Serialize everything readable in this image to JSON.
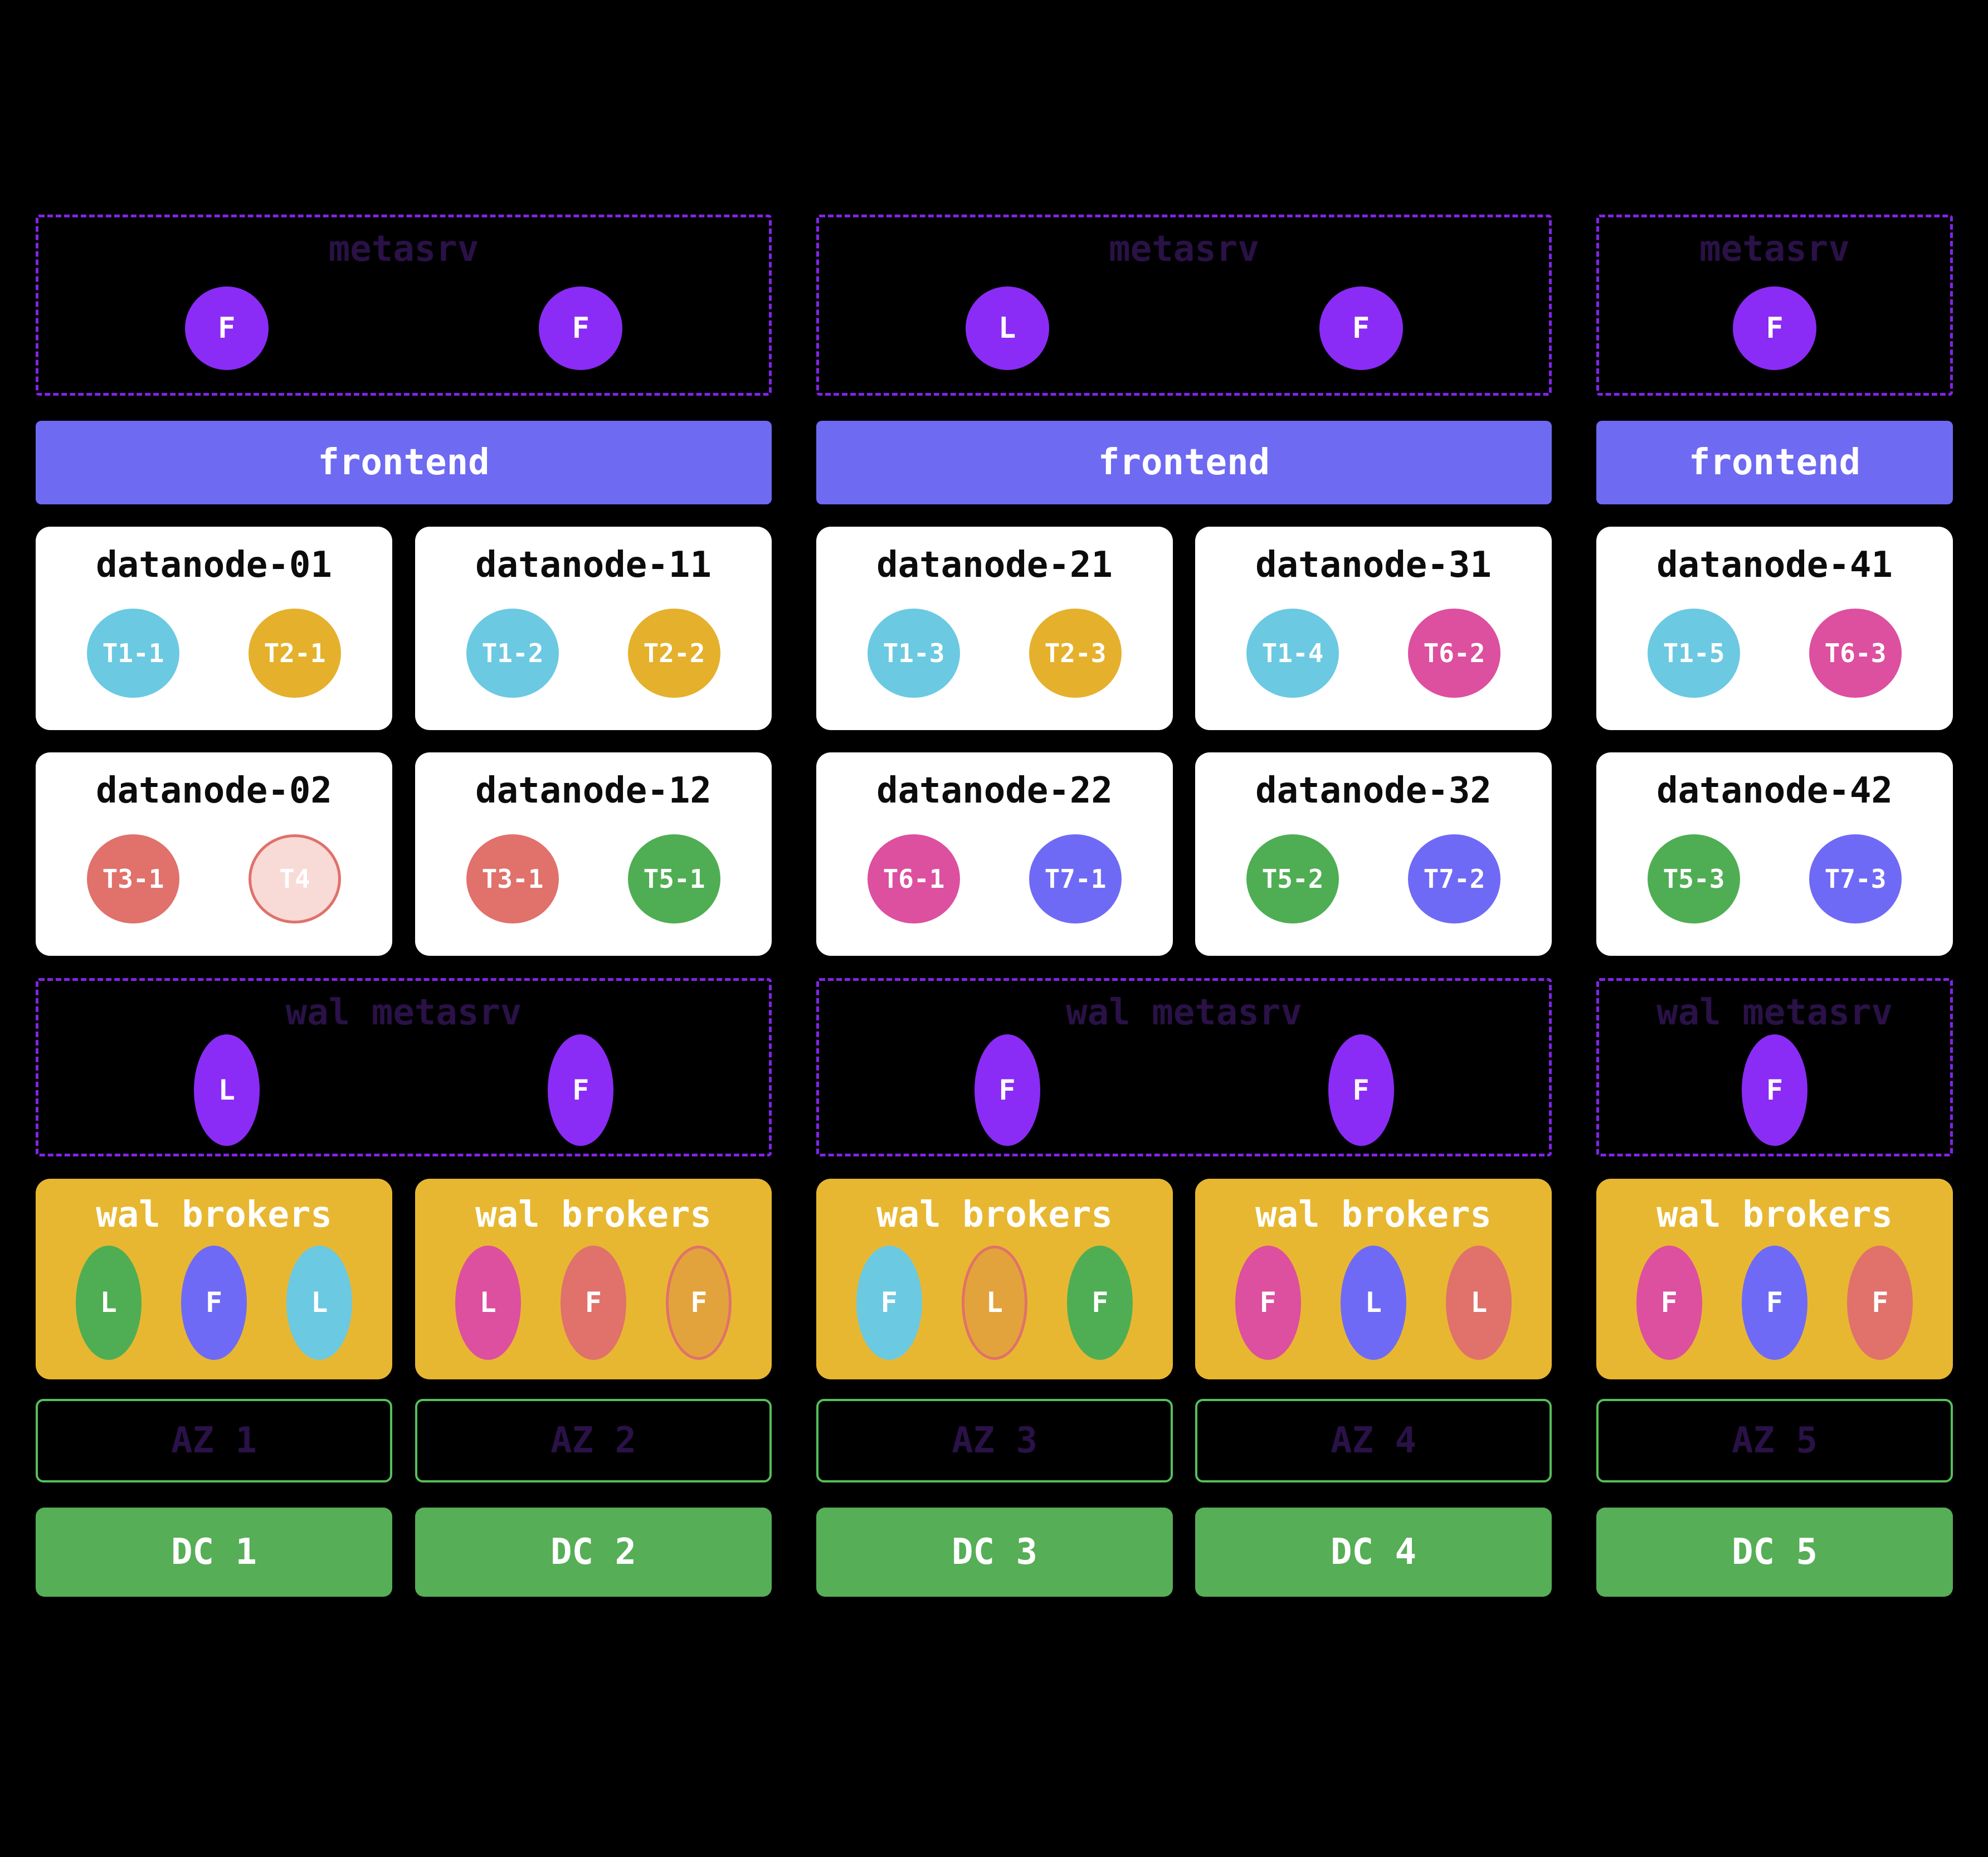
{
  "palette": {
    "background": "#000000",
    "purple_node": "#8a2cf5",
    "purple_dashed_border": "#8224e8",
    "dark_purple_text": "#2a1147",
    "frontend_bar": "#6e6af2",
    "broker_box": "#e8b731",
    "datanode_box": "#ffffff",
    "cyan": "#6bc9e2",
    "gold": "#e5b02c",
    "salmon": "#e0716b",
    "pale_pink": "#f8dad6",
    "green": "#4fae53",
    "magenta": "#dd4f9f",
    "blue": "#6f6af5",
    "orange": "#e2a33c",
    "az_border": "#54c05a",
    "dc_green": "#56ae56"
  },
  "metasrv_boxes": [
    {
      "title": "metasrv",
      "nodes": [
        {
          "role": "F"
        },
        {
          "role": "F"
        }
      ]
    },
    {
      "title": "metasrv",
      "nodes": [
        {
          "role": "L"
        },
        {
          "role": "F"
        }
      ]
    },
    {
      "title": "metasrv",
      "nodes": [
        {
          "role": "F"
        }
      ]
    }
  ],
  "frontend_bars": [
    {
      "label": "frontend"
    },
    {
      "label": "frontend"
    },
    {
      "label": "frontend"
    }
  ],
  "datanodes": [
    {
      "title": "datanode-01",
      "regions": [
        {
          "label": "T1-1",
          "color": "#6bc9e2"
        },
        {
          "label": "T2-1",
          "color": "#e5b02c"
        }
      ]
    },
    {
      "title": "datanode-11",
      "regions": [
        {
          "label": "T1-2",
          "color": "#6bc9e2"
        },
        {
          "label": "T2-2",
          "color": "#e5b02c"
        }
      ]
    },
    {
      "title": "datanode-21",
      "regions": [
        {
          "label": "T1-3",
          "color": "#6bc9e2"
        },
        {
          "label": "T2-3",
          "color": "#e5b02c"
        }
      ]
    },
    {
      "title": "datanode-31",
      "regions": [
        {
          "label": "T1-4",
          "color": "#6bc9e2"
        },
        {
          "label": "T6-2",
          "color": "#dd4f9f"
        }
      ]
    },
    {
      "title": "datanode-41",
      "regions": [
        {
          "label": "T1-5",
          "color": "#6bc9e2"
        },
        {
          "label": "T6-3",
          "color": "#dd4f9f"
        }
      ]
    },
    {
      "title": "datanode-02",
      "regions": [
        {
          "label": "T3-1",
          "color": "#e0716b"
        },
        {
          "label": "T4",
          "color": "#f8dad6",
          "border": "#e0716b"
        }
      ]
    },
    {
      "title": "datanode-12",
      "regions": [
        {
          "label": "T3-1",
          "color": "#e0716b"
        },
        {
          "label": "T5-1",
          "color": "#4fae53"
        }
      ]
    },
    {
      "title": "datanode-22",
      "regions": [
        {
          "label": "T6-1",
          "color": "#dd4f9f"
        },
        {
          "label": "T7-1",
          "color": "#6f6af5"
        }
      ]
    },
    {
      "title": "datanode-32",
      "regions": [
        {
          "label": "T5-2",
          "color": "#4fae53"
        },
        {
          "label": "T7-2",
          "color": "#6f6af5"
        }
      ]
    },
    {
      "title": "datanode-42",
      "regions": [
        {
          "label": "T5-3",
          "color": "#4fae53"
        },
        {
          "label": "T7-3",
          "color": "#6f6af5"
        }
      ]
    }
  ],
  "wal_metasrv_boxes": [
    {
      "title": "wal metasrv",
      "nodes": [
        {
          "role": "L"
        },
        {
          "role": "F"
        }
      ]
    },
    {
      "title": "wal metasrv",
      "nodes": [
        {
          "role": "F"
        },
        {
          "role": "F"
        }
      ]
    },
    {
      "title": "wal metasrv",
      "nodes": [
        {
          "role": "F"
        }
      ]
    }
  ],
  "wal_brokers": [
    {
      "title": "wal brokers",
      "nodes": [
        {
          "role": "L",
          "color": "#4fae53"
        },
        {
          "role": "F",
          "color": "#6f6af5"
        },
        {
          "role": "L",
          "color": "#6bc9e2"
        }
      ]
    },
    {
      "title": "wal brokers",
      "nodes": [
        {
          "role": "L",
          "color": "#dd4f9f"
        },
        {
          "role": "F",
          "color": "#e0716b"
        },
        {
          "role": "F",
          "color": "#e2a33c",
          "border": "#e0716b"
        }
      ]
    },
    {
      "title": "wal brokers",
      "nodes": [
        {
          "role": "F",
          "color": "#6bc9e2"
        },
        {
          "role": "L",
          "color": "#e2a33c",
          "border": "#e0716b"
        },
        {
          "role": "F",
          "color": "#4fae53"
        }
      ]
    },
    {
      "title": "wal brokers",
      "nodes": [
        {
          "role": "F",
          "color": "#dd4f9f"
        },
        {
          "role": "L",
          "color": "#6f6af5"
        },
        {
          "role": "L",
          "color": "#e0716b"
        }
      ]
    },
    {
      "title": "wal brokers",
      "nodes": [
        {
          "role": "F",
          "color": "#dd4f9f"
        },
        {
          "role": "F",
          "color": "#6f6af5"
        },
        {
          "role": "F",
          "color": "#e0716b"
        }
      ]
    }
  ],
  "azs": [
    {
      "label": "AZ 1"
    },
    {
      "label": "AZ 2"
    },
    {
      "label": "AZ 3"
    },
    {
      "label": "AZ 4"
    },
    {
      "label": "AZ 5"
    }
  ],
  "dcs": [
    {
      "label": "DC 1"
    },
    {
      "label": "DC 2"
    },
    {
      "label": "DC 3"
    },
    {
      "label": "DC 4"
    },
    {
      "label": "DC 5"
    }
  ]
}
